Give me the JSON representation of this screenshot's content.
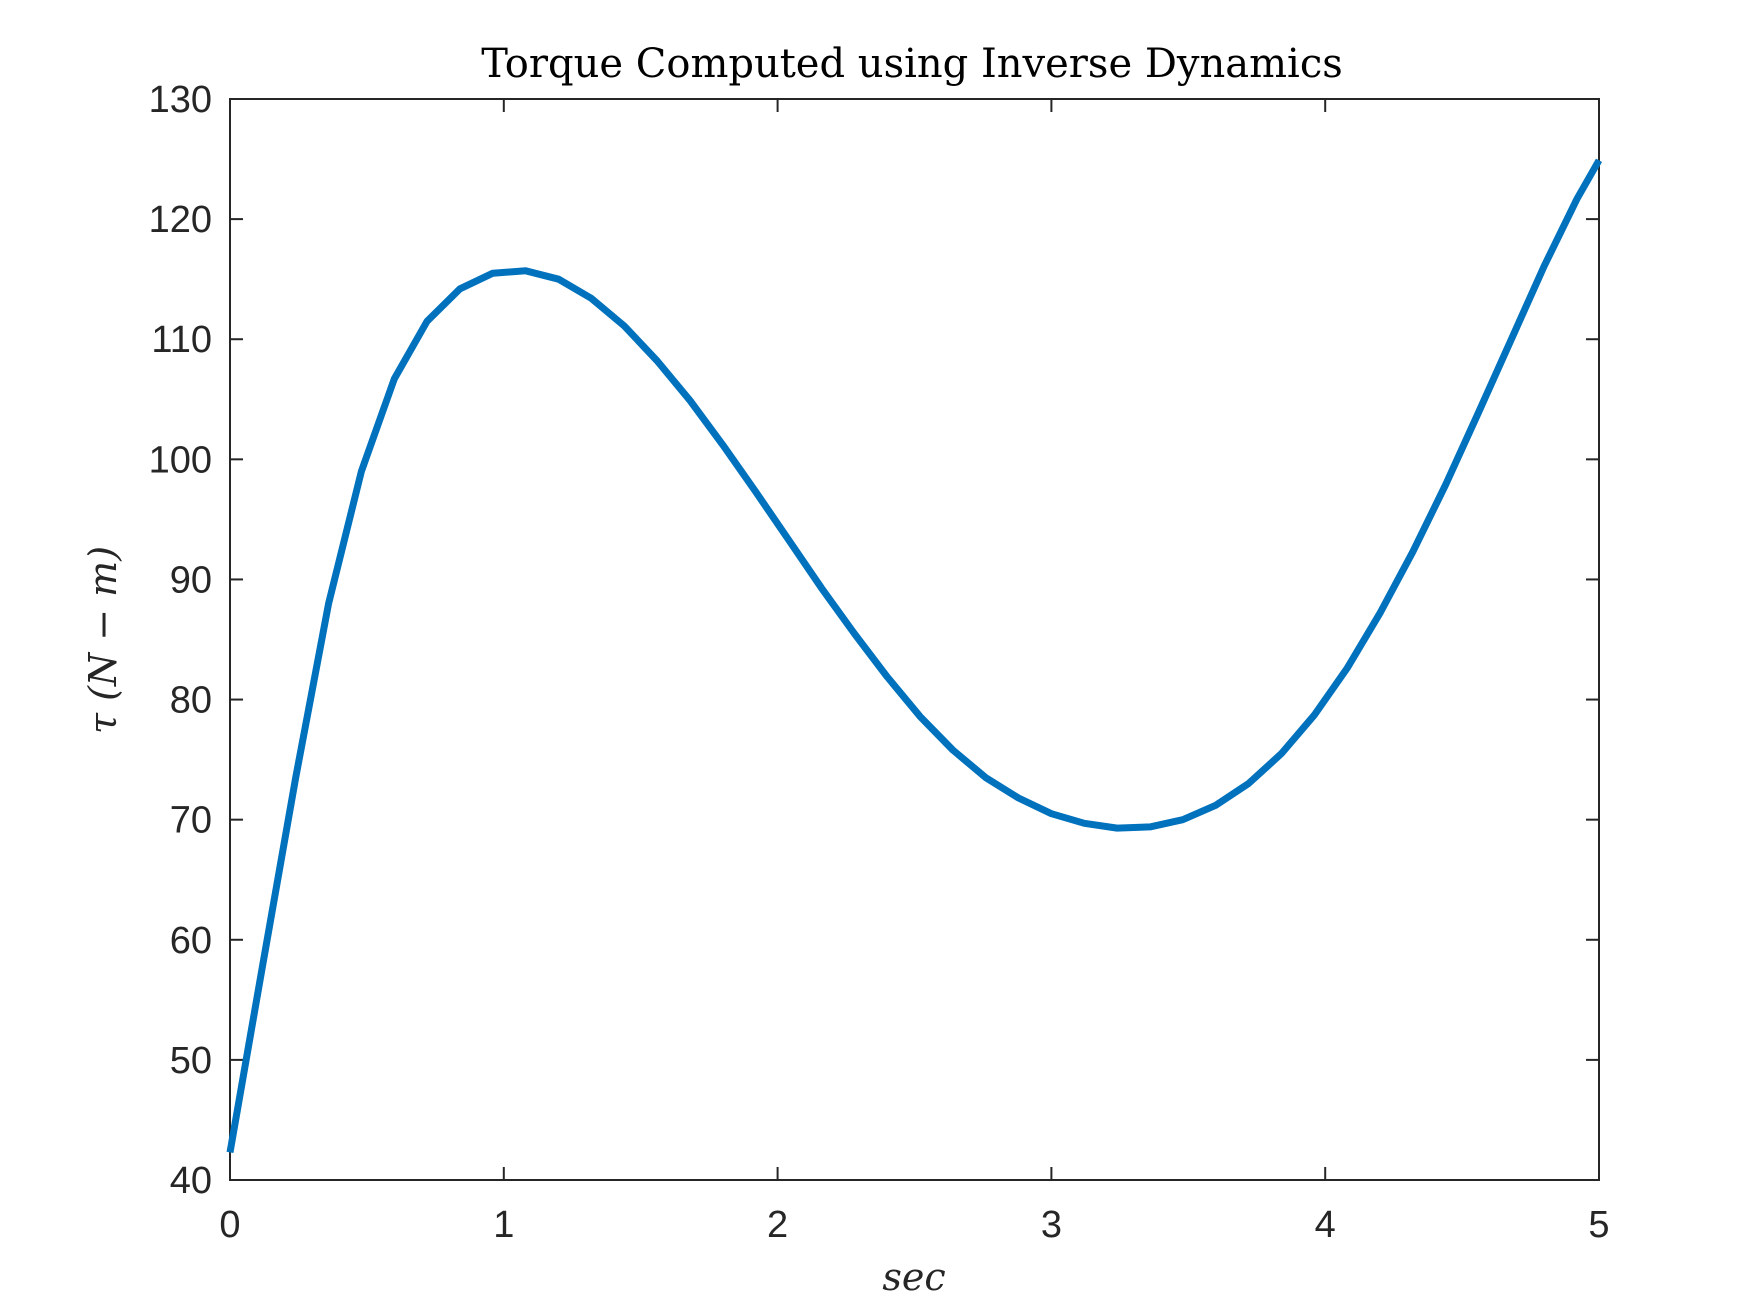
{
  "chart_data": {
    "type": "line",
    "title": "Torque Computed using Inverse Dynamics",
    "xlabel": "sec",
    "ylabel": "τ (N − m)",
    "xlim": [
      0,
      5
    ],
    "ylim": [
      40,
      130
    ],
    "xticks": [
      "0",
      "1",
      "2",
      "3",
      "4",
      "5"
    ],
    "yticks": [
      "40",
      "50",
      "60",
      "70",
      "80",
      "90",
      "100",
      "110",
      "120",
      "130"
    ],
    "grid": false,
    "colors": {
      "line": "#0072BD",
      "axes": "#262626"
    },
    "series": [
      {
        "x": [
          0,
          0.12,
          0.24,
          0.36,
          0.48,
          0.6,
          0.72,
          0.84,
          0.96,
          1.08,
          1.2,
          1.32,
          1.44,
          1.56,
          1.68,
          1.8,
          1.92,
          2.04,
          2.16,
          2.28,
          2.4,
          2.52,
          2.64,
          2.76,
          2.88,
          3.0,
          3.12,
          3.24,
          3.36,
          3.48,
          3.6,
          3.72,
          3.84,
          3.96,
          4.08,
          4.2,
          4.32,
          4.44,
          4.56,
          4.68,
          4.8,
          4.92,
          5.0
        ],
        "values": [
          42.3,
          58.0,
          73.5,
          88.0,
          99.0,
          106.7,
          111.5,
          114.2,
          115.5,
          115.7,
          115.0,
          113.4,
          111.1,
          108.2,
          104.9,
          101.2,
          97.3,
          93.3,
          89.3,
          85.5,
          81.9,
          78.6,
          75.8,
          73.5,
          71.8,
          70.5,
          69.7,
          69.3,
          69.4,
          70.0,
          71.2,
          73.0,
          75.5,
          78.7,
          82.6,
          87.2,
          92.3,
          97.9,
          103.9,
          110.0,
          116.1,
          121.7,
          124.9
        ]
      }
    ]
  }
}
